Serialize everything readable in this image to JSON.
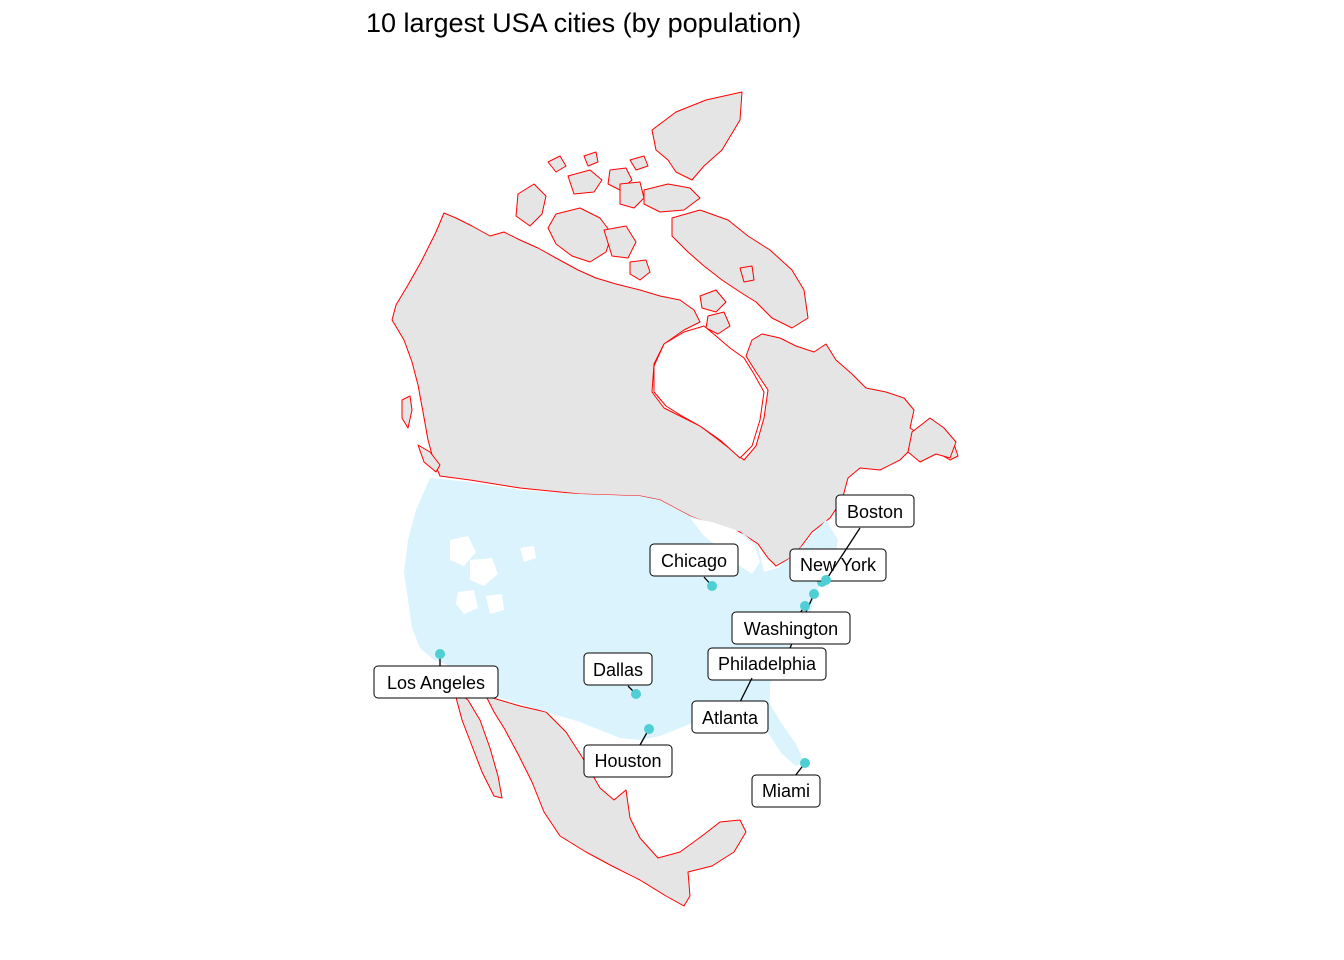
{
  "title": "10 largest USA cities (by population)",
  "colors": {
    "land": "#e5e5e5",
    "border": "#ff0000",
    "usa_fill": "#daf3fd",
    "city_point": "#4fcfd4",
    "label_border": "#000000"
  },
  "cities": [
    {
      "name": "New York"
    },
    {
      "name": "Los Angeles"
    },
    {
      "name": "Chicago"
    },
    {
      "name": "Houston"
    },
    {
      "name": "Philadelphia"
    },
    {
      "name": "Dallas"
    },
    {
      "name": "Miami"
    },
    {
      "name": "Atlanta"
    },
    {
      "name": "Washington"
    },
    {
      "name": "Boston"
    }
  ]
}
